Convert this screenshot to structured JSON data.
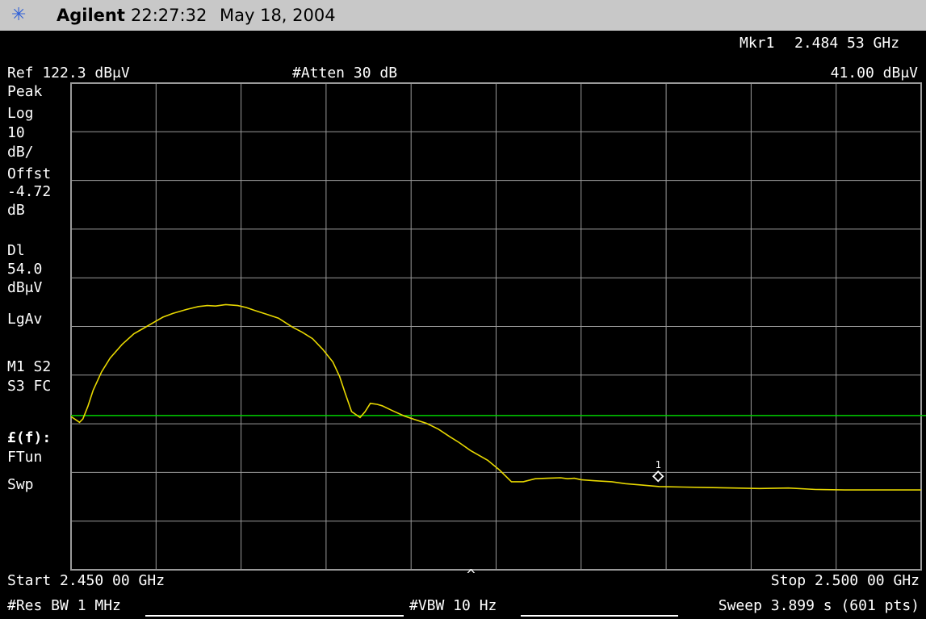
{
  "header": {
    "logo_icon": "agilent-spark-icon",
    "brand": "Agilent",
    "time": "22:27:32",
    "date": "May 18, 2004"
  },
  "marker_readout": {
    "label": "Mkr1",
    "frequency": "2.484 53 GHz",
    "amplitude": "41.00 dBμV"
  },
  "top_info": {
    "ref": "Ref 122.3 dBμV",
    "atten": "#Atten 30 dB"
  },
  "side_panel": {
    "detector": "Peak",
    "scale_type": "Log",
    "scale_value": "10",
    "scale_unit": "dB/",
    "offset_label": "Offst",
    "offset_value": "-4.72",
    "offset_unit": "dB",
    "display_line_label": "Dl",
    "display_line_value": "54.0",
    "display_line_unit": "dBμV",
    "averaging": "LgAv",
    "trace_row1": "M1  S2",
    "trace_row2": "S3  FC",
    "correction": "£(f):",
    "ftun": "FTun",
    "swp": "Swp"
  },
  "footer": {
    "start": "Start 2.450 00 GHz",
    "stop": "Stop 2.500 00 GHz",
    "res_bw": "#Res BW 1 MHz",
    "vbw": "#VBW 10 Hz",
    "sweep": "Sweep 3.899 s (601 pts)",
    "center_caret": "^"
  },
  "colors": {
    "trace": "#e8d800",
    "display_line": "#00d000",
    "grid": "#9a9a9a",
    "marker": "#ffffff"
  },
  "chart_data": {
    "type": "line",
    "xlabel": "",
    "ylabel": "",
    "xlim": [
      2.45,
      2.5
    ],
    "ylim": [
      22.3,
      122.3
    ],
    "x_unit": "GHz",
    "y_unit": "dBμV",
    "grid": true,
    "display_line": 54.0,
    "marker": {
      "label": "1",
      "x": 2.48453,
      "y": 41.0
    },
    "series": [
      {
        "x": [
          2.45,
          2.4505,
          2.4507,
          2.451,
          2.4513,
          2.4518,
          2.4523,
          2.453,
          2.4537,
          2.4542,
          2.4549,
          2.4554,
          2.456,
          2.4568,
          2.4575,
          2.458,
          2.4585,
          2.4591,
          2.4598,
          2.4603,
          2.4608,
          2.4615,
          2.4622,
          2.463,
          2.4636,
          2.4642,
          2.4648,
          2.4654,
          2.4658,
          2.4661,
          2.4665,
          2.467,
          2.4673,
          2.4676,
          2.468,
          2.4683,
          2.4689,
          2.4696,
          2.4702,
          2.4709,
          2.4716,
          2.4723,
          2.4728,
          2.4735,
          2.4745,
          2.4752,
          2.4759,
          2.4766,
          2.4773,
          2.478,
          2.4788,
          2.4792,
          2.4796,
          2.48,
          2.4808,
          2.4818,
          2.4826,
          2.4836,
          2.4846,
          2.486,
          2.4874,
          2.489,
          2.4905,
          2.4922,
          2.4938,
          2.4955,
          2.4975,
          2.5
        ],
        "y": [
          53.8,
          52.6,
          53.3,
          56.0,
          59.2,
          63.0,
          65.8,
          68.6,
          70.8,
          71.8,
          73.2,
          74.2,
          75.0,
          75.8,
          76.4,
          76.6,
          76.5,
          76.8,
          76.6,
          76.2,
          75.6,
          74.8,
          74.0,
          72.2,
          71.1,
          69.8,
          67.6,
          65.0,
          62.0,
          58.8,
          54.8,
          53.6,
          54.8,
          56.5,
          56.3,
          56.0,
          55.0,
          53.9,
          53.2,
          52.4,
          51.2,
          49.6,
          48.5,
          46.8,
          44.8,
          42.8,
          40.4,
          40.4,
          41.0,
          41.1,
          41.2,
          41.0,
          41.1,
          40.8,
          40.6,
          40.4,
          40.0,
          39.7,
          39.4,
          39.3,
          39.2,
          39.1,
          39.0,
          39.1,
          38.8,
          38.7,
          38.7,
          38.7
        ]
      }
    ]
  }
}
